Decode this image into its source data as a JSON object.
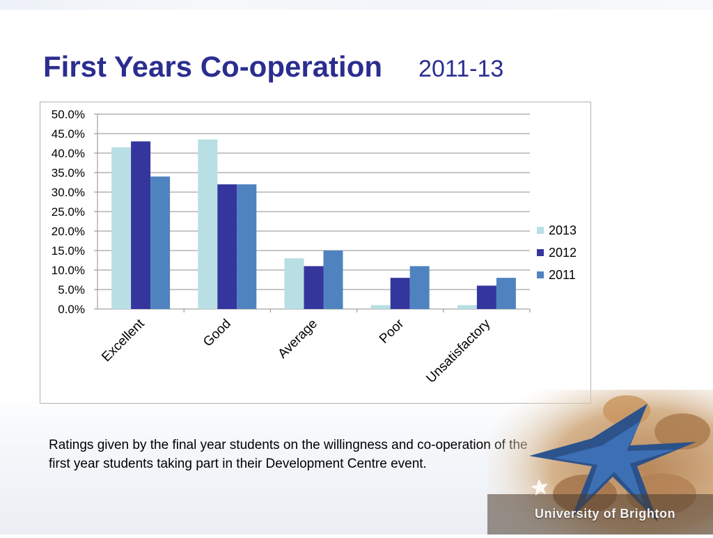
{
  "slide": {
    "title": "First Years Co-operation",
    "title_year": "2011-13",
    "caption": "Ratings given by the final year students on the willingness and co-operation of the first year students taking part in their Development Centre event.",
    "brand": "University of Brighton"
  },
  "colors": {
    "title": "#2b2d8f",
    "series_2013": "#b8dfe3",
    "series_2012": "#35359e",
    "series_2011": "#4f83bf"
  },
  "chart_data": {
    "type": "bar",
    "categories": [
      "Excellent",
      "Good",
      "Average",
      "Poor",
      "Unsatisfactory"
    ],
    "series": [
      {
        "name": "2013",
        "values": [
          41.5,
          43.5,
          13.0,
          1.0,
          1.0
        ]
      },
      {
        "name": "2012",
        "values": [
          43.0,
          32.0,
          11.0,
          8.0,
          6.0
        ]
      },
      {
        "name": "2011",
        "values": [
          34.0,
          32.0,
          15.0,
          11.0,
          8.0
        ]
      }
    ],
    "yticks": [
      "0.0%",
      "5.0%",
      "10.0%",
      "15.0%",
      "20.0%",
      "25.0%",
      "30.0%",
      "35.0%",
      "40.0%",
      "45.0%",
      "50.0%"
    ],
    "ylim": [
      0,
      50
    ],
    "grid": true,
    "legend": "right"
  }
}
